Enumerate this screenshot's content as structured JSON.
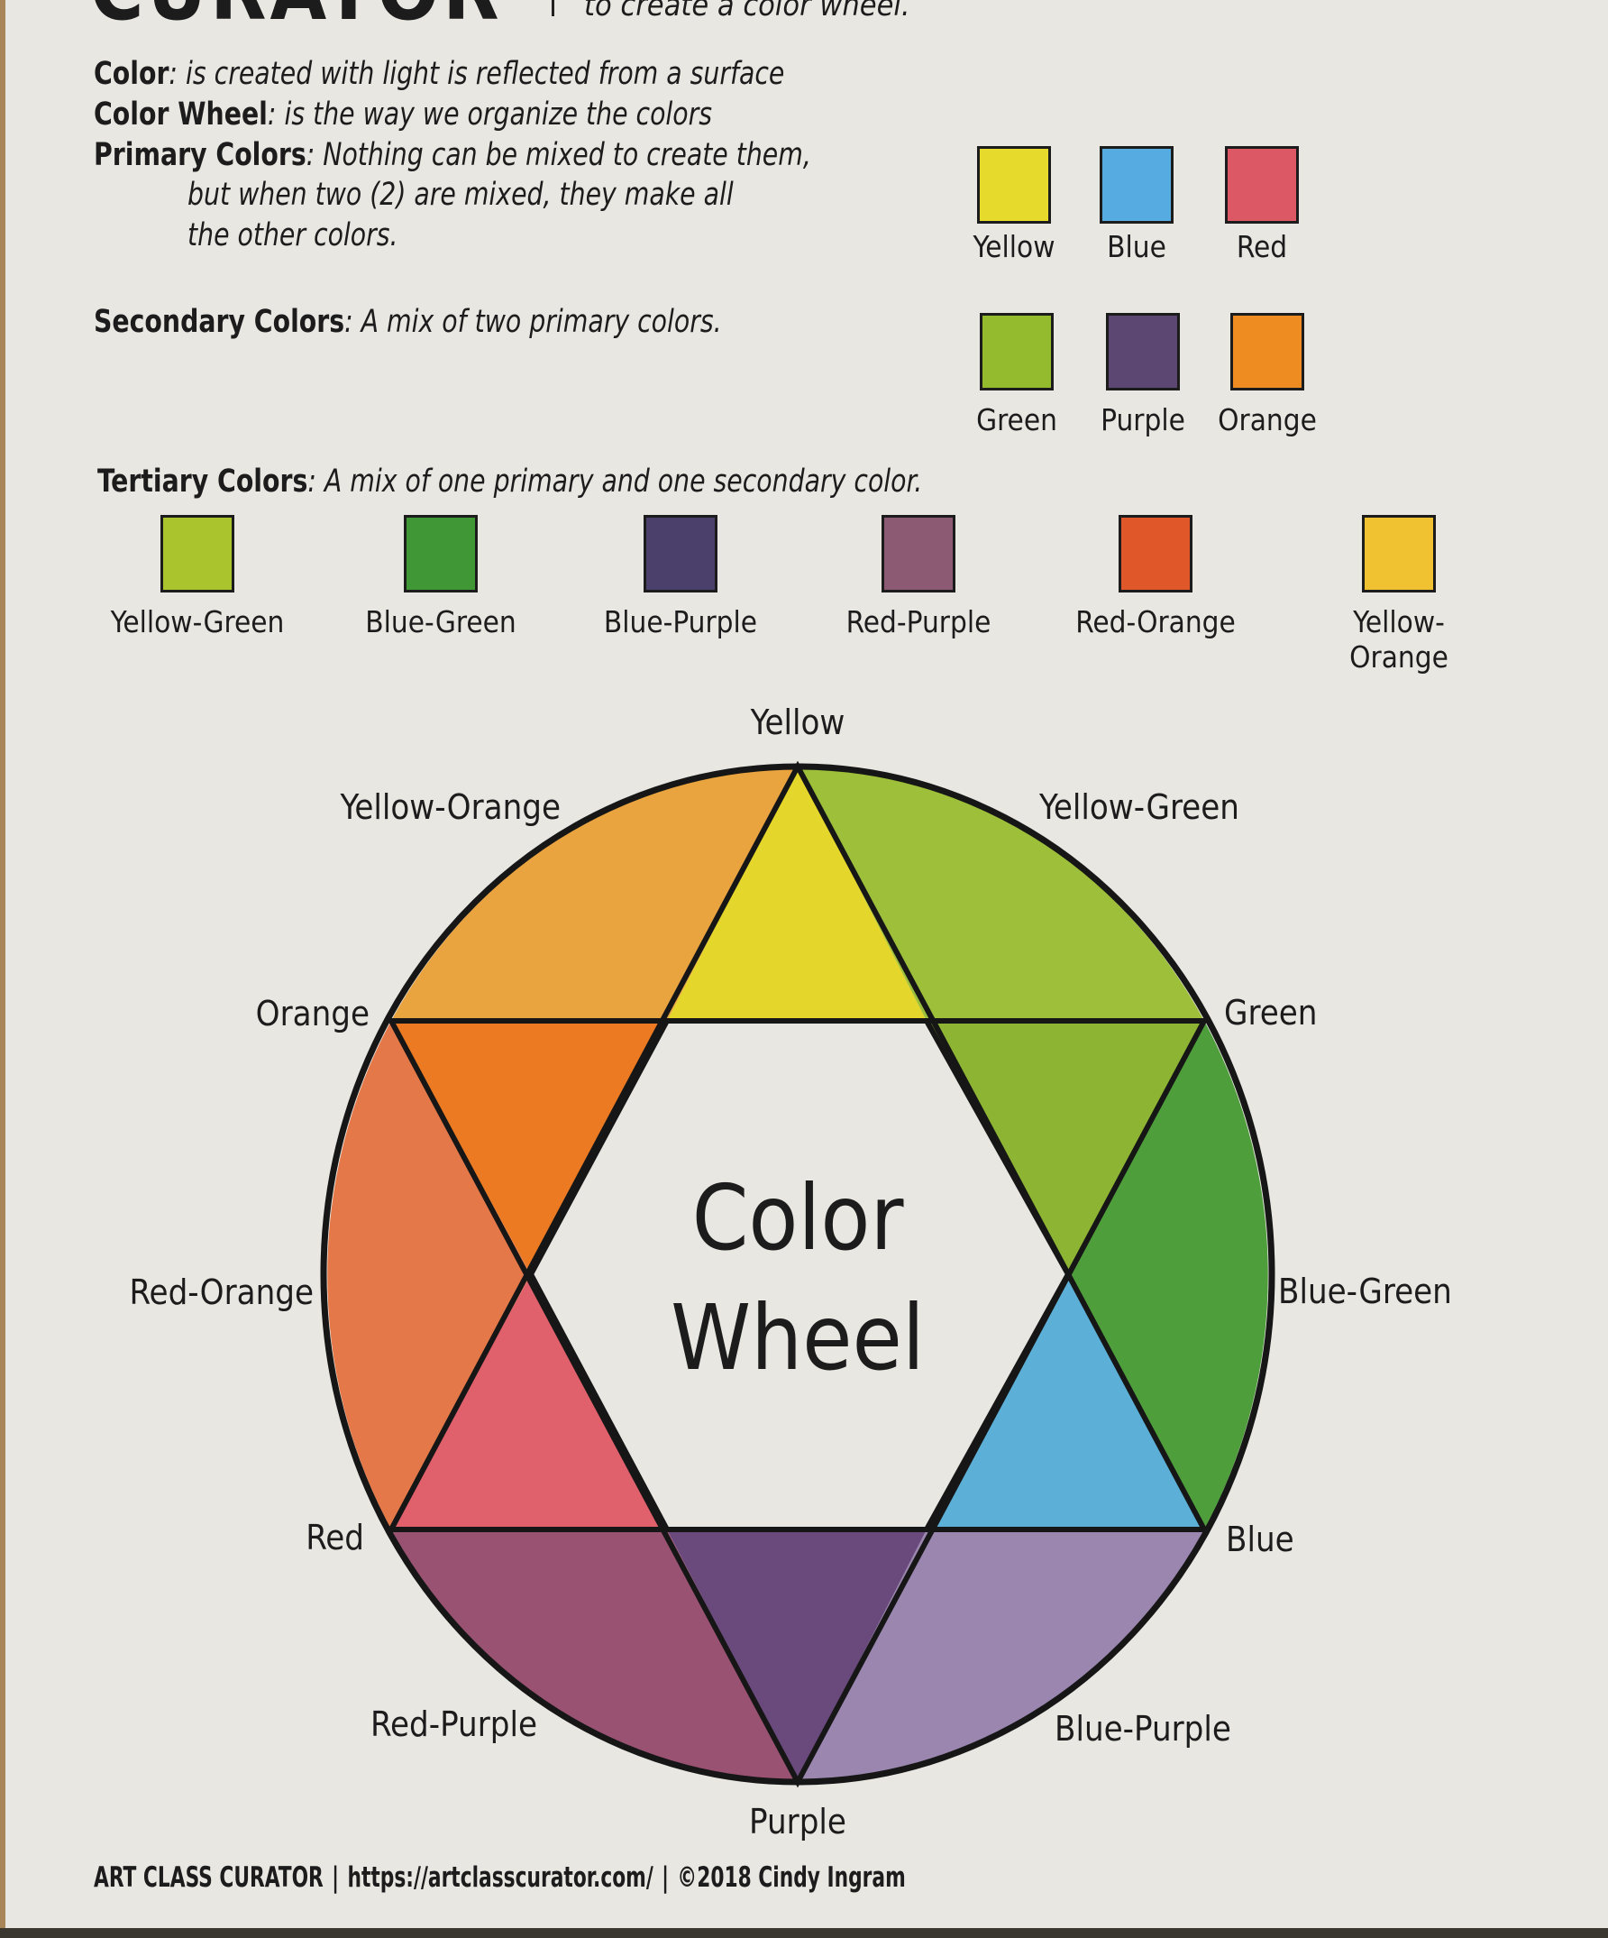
{
  "header": {
    "title_fragment": "CURATOR",
    "subtitle_fragment": "to create a color wheel."
  },
  "definitions": [
    {
      "term": "Color",
      "text": ": is created with light is reflected from a surface"
    },
    {
      "term": "Color Wheel",
      "text": ": is the way we organize the colors"
    },
    {
      "term": "Primary Colors",
      "text": ": Nothing can be mixed to create them,"
    },
    {
      "term": "",
      "text": "but when two (2) are mixed, they make all"
    },
    {
      "term": "",
      "text": "the other colors."
    },
    {
      "term": "Secondary Colors",
      "text": ": A mix of two primary colors."
    },
    {
      "term": "Tertiary Colors",
      "text": ": A mix of one primary and one secondary color."
    }
  ],
  "primary_swatches": [
    {
      "label": "Yellow",
      "color": "#e6da2c"
    },
    {
      "label": "Blue",
      "color": "#56ace0"
    },
    {
      "label": "Red",
      "color": "#dc5864"
    }
  ],
  "secondary_swatches": [
    {
      "label": "Green",
      "color": "#94bb2e"
    },
    {
      "label": "Purple",
      "color": "#5c4672"
    },
    {
      "label": "Orange",
      "color": "#ee8c22"
    }
  ],
  "tertiary_swatches": [
    {
      "label": "Yellow-Green",
      "color": "#a9c42c"
    },
    {
      "label": "Blue-Green",
      "color": "#3f9736"
    },
    {
      "label": "Blue-Purple",
      "color": "#4b3f6c"
    },
    {
      "label": "Red-Purple",
      "color": "#8c5a72"
    },
    {
      "label": "Red-Orange",
      "color": "#e0572a"
    },
    {
      "label": "Yellow-Orange",
      "color": "#f0c232"
    }
  ],
  "wheel": {
    "title_line1": "Color",
    "title_line2": "Wheel",
    "labels": {
      "yellow": "Yellow",
      "yellow_green": "Yellow-Green",
      "green": "Green",
      "blue_green": "Blue-Green",
      "blue": "Blue",
      "blue_purple": "Blue-Purple",
      "purple": "Purple",
      "red_purple": "Red-Purple",
      "red": "Red",
      "red_orange": "Red-Orange",
      "orange": "Orange",
      "yellow_orange": "Yellow-Orange"
    },
    "colors": {
      "yellow": "#e4d62a",
      "yellow_green": "#9dbf3a",
      "green": "#8db533",
      "blue_green": "#4f9e3c",
      "blue": "#5cb0d8",
      "blue_purple": "#9a86ae",
      "purple": "#6a4a7c",
      "red_purple": "#9a5272",
      "red": "#e0606c",
      "red_orange": "#e47848",
      "orange": "#eb7a22",
      "yellow_orange": "#e9a440"
    }
  },
  "footer": {
    "brand": "ART CLASS CURATOR",
    "url": "https://artclasscurator.com/",
    "copyright": "©2018 Cindy Ingram"
  }
}
